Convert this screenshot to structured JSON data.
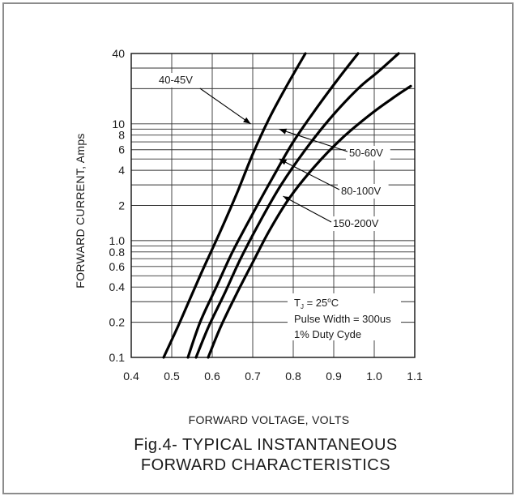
{
  "chart_data": {
    "type": "line",
    "title": "Fig.4- TYPICAL INSTANTANEOUS FORWARD CHARACTERISTICS",
    "title_lines": [
      "Fig.4- TYPICAL INSTANTANEOUS",
      "FORWARD CHARACTERISTICS"
    ],
    "xlabel": "FORWARD VOLTAGE, VOLTS",
    "ylabel": "FORWARD CURRENT, Amps",
    "xlim": [
      0.4,
      1.1
    ],
    "ylim": [
      0.1,
      40
    ],
    "yscale": "log",
    "grid": true,
    "x_ticks": [
      {
        "v": 0.4,
        "label": "0.4"
      },
      {
        "v": 0.5,
        "label": "0.5"
      },
      {
        "v": 0.6,
        "label": "0.6"
      },
      {
        "v": 0.7,
        "label": "0.7"
      },
      {
        "v": 0.8,
        "label": "0.8"
      },
      {
        "v": 0.9,
        "label": "0.9"
      },
      {
        "v": 1.0,
        "label": "1.0"
      },
      {
        "v": 1.1,
        "label": "1.1"
      }
    ],
    "y_ticks": [
      {
        "v": 0.1,
        "label": "0.1"
      },
      {
        "v": 0.2,
        "label": "0.2"
      },
      {
        "v": 0.4,
        "label": "0.4"
      },
      {
        "v": 0.6,
        "label": "0.6"
      },
      {
        "v": 0.8,
        "label": "0.8"
      },
      {
        "v": 1.0,
        "label": "1.0"
      },
      {
        "v": 2,
        "label": "2"
      },
      {
        "v": 4,
        "label": "4"
      },
      {
        "v": 6,
        "label": "6"
      },
      {
        "v": 8,
        "label": "8"
      },
      {
        "v": 10,
        "label": "10"
      },
      {
        "v": 40,
        "label": "40"
      }
    ],
    "y_gridlines": [
      0.1,
      0.2,
      0.3,
      0.4,
      0.5,
      0.6,
      0.7,
      0.8,
      0.9,
      1,
      2,
      3,
      4,
      5,
      6,
      7,
      8,
      9,
      10,
      20,
      30,
      40
    ],
    "series": [
      {
        "name": "40-45V",
        "x": [
          0.48,
          0.52,
          0.57,
          0.62,
          0.66,
          0.7,
          0.74,
          0.78,
          0.83
        ],
        "y": [
          0.1,
          0.2,
          0.5,
          1.2,
          2.5,
          5.5,
          11,
          20,
          40
        ]
      },
      {
        "name": "50-60V",
        "x": [
          0.54,
          0.57,
          0.61,
          0.65,
          0.7,
          0.75,
          0.8,
          0.86,
          0.91,
          0.96
        ],
        "y": [
          0.1,
          0.2,
          0.4,
          0.8,
          1.7,
          3.5,
          7,
          14,
          24,
          40
        ]
      },
      {
        "name": "80-100V",
        "x": [
          0.56,
          0.59,
          0.63,
          0.67,
          0.72,
          0.77,
          0.83,
          0.89,
          0.96,
          1.01,
          1.06
        ],
        "y": [
          0.1,
          0.18,
          0.35,
          0.7,
          1.5,
          3,
          6,
          11,
          20,
          28,
          40
        ]
      },
      {
        "name": "150-200V",
        "x": [
          0.59,
          0.62,
          0.66,
          0.7,
          0.74,
          0.79,
          0.85,
          0.92,
          0.99,
          1.05,
          1.09
        ],
        "y": [
          0.1,
          0.18,
          0.35,
          0.65,
          1.2,
          2.3,
          4.2,
          7.5,
          12,
          17,
          21
        ]
      }
    ],
    "annotations": [
      {
        "text": "40-45V",
        "series": "40-45V",
        "arrow_to": [
          0.695,
          10
        ]
      },
      {
        "text": "50-60V",
        "series": "50-60V",
        "arrow_to": [
          0.765,
          9
        ]
      },
      {
        "text": "80-100V",
        "series": "80-100V",
        "arrow_to": [
          0.765,
          5
        ]
      },
      {
        "text": "150-200V",
        "series": "150-200V",
        "arrow_to": [
          0.775,
          2.4
        ]
      }
    ],
    "conditions": [
      "T_J = 25°C",
      "Pulse Width = 300us",
      "1% Duty Cyde"
    ]
  },
  "conditions_text": {
    "tj_prefix": "T",
    "tj_sub": "J",
    "tj_eq": " = 25",
    "tj_deg": "o",
    "tj_unit": "C",
    "pulse": "Pulse Width = 300us",
    "duty": "1% Duty Cyde"
  }
}
